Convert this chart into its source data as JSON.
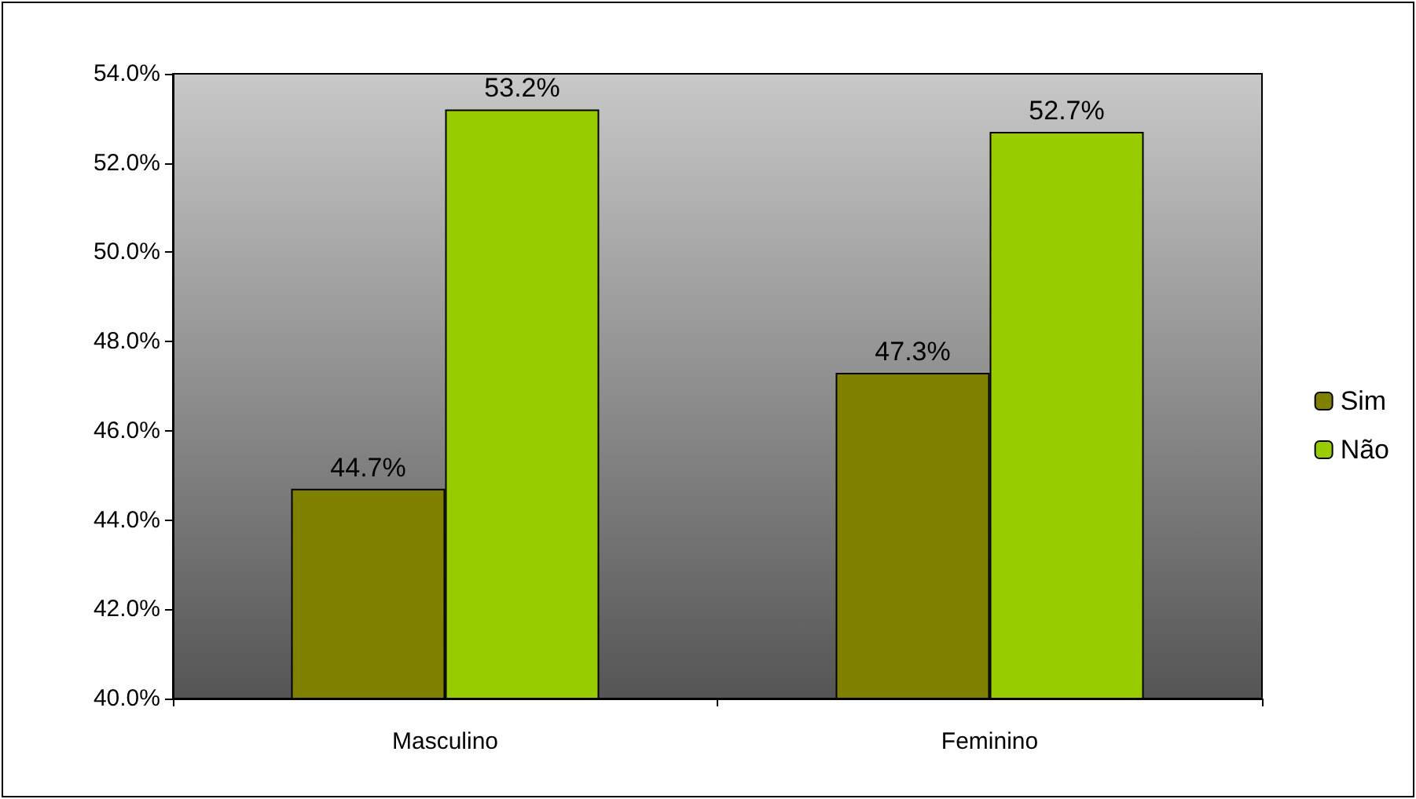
{
  "chart_data": {
    "type": "bar",
    "categories": [
      "Masculino",
      "Feminino"
    ],
    "series": [
      {
        "name": "Sim",
        "color": "#808000",
        "values": [
          44.7,
          47.3
        ],
        "value_labels": [
          "44.7%",
          "47.3%"
        ]
      },
      {
        "name": "Não",
        "color": "#99cc00",
        "values": [
          53.2,
          52.7
        ],
        "value_labels": [
          "53.2%",
          "52.7%"
        ]
      }
    ],
    "ylim": [
      40,
      54
    ],
    "yticks": [
      {
        "value": 40,
        "label": "40.0%"
      },
      {
        "value": 42,
        "label": "42.0%"
      },
      {
        "value": 44,
        "label": "44.0%"
      },
      {
        "value": 46,
        "label": "46.0%"
      },
      {
        "value": 48,
        "label": "48.0%"
      },
      {
        "value": 50,
        "label": "50.0%"
      },
      {
        "value": 52,
        "label": "52.0%"
      },
      {
        "value": 54,
        "label": "54.0%"
      }
    ],
    "grid": false,
    "legend": "right"
  }
}
